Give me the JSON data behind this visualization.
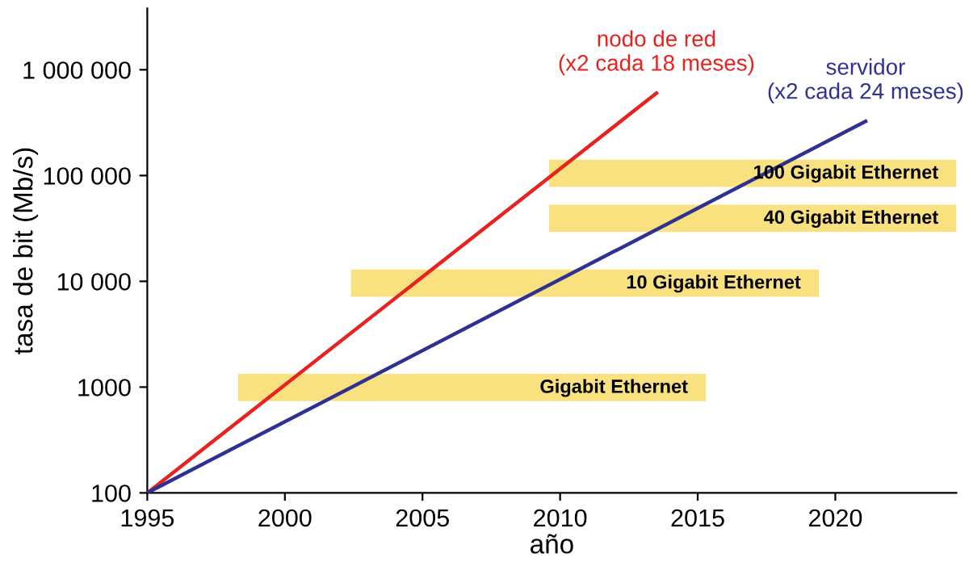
{
  "chart_data": {
    "type": "line",
    "xlabel": "año",
    "ylabel": "tasa de bit (Mb/s)",
    "log": "y",
    "xlim": [
      1995,
      2024.4
    ],
    "xticks": [
      1995,
      2000,
      2005,
      2010,
      2015,
      2020
    ],
    "ylim": [
      100,
      3800000
    ],
    "yticks": [
      {
        "value": 100,
        "label": "100"
      },
      {
        "value": 1000,
        "label": "1000"
      },
      {
        "value": 10000,
        "label": "10 000"
      },
      {
        "value": 100000,
        "label": "100 000"
      },
      {
        "value": 1000000,
        "label": "1 000 000"
      }
    ],
    "grid": false,
    "legend": false,
    "marker": "none",
    "line_style": "solid",
    "series": [
      {
        "color": "#e8231f",
        "x": [
          1995,
          2013.5
        ],
        "values": [
          100,
          600000
        ]
      },
      {
        "color": "#2e3192",
        "x": [
          1995,
          2021.1
        ],
        "values": [
          100,
          325000
        ]
      }
    ],
    "bands": [
      {
        "axis": "x",
        "from": 1998.3,
        "to": 2015.3,
        "color": "#f9e17f"
      },
      {
        "axis": "x",
        "from": 2002.4,
        "to": 2019.4,
        "color": "#f9e17f"
      },
      {
        "axis": "x",
        "from": 2009.6,
        "to": 2024.4,
        "color": "#f9e17f"
      },
      {
        "axis": "x",
        "from": 2009.6,
        "to": 2024.4,
        "color": "#f9e17f"
      }
    ],
    "annotations": [
      {
        "text": "nodo de red\n(x2 cada 18 meses)",
        "x": 2013.5,
        "y": 600000
      },
      {
        "text": "servidor\n(x2 cada 24 meses)",
        "x": 2021.1,
        "y": 325000
      },
      {
        "text": "Gigabit Ethernet",
        "x": 2015.3,
        "y": 980
      },
      {
        "text": "10 Gigabit Ethernet",
        "x": 2019.4,
        "y": 9500
      },
      {
        "text": "100 Gigabit Ethernet",
        "x": 2024.4,
        "y": 104000
      },
      {
        "text": "40 Gigabit Ethernet",
        "x": 2024.4,
        "y": 39000
      }
    ]
  }
}
